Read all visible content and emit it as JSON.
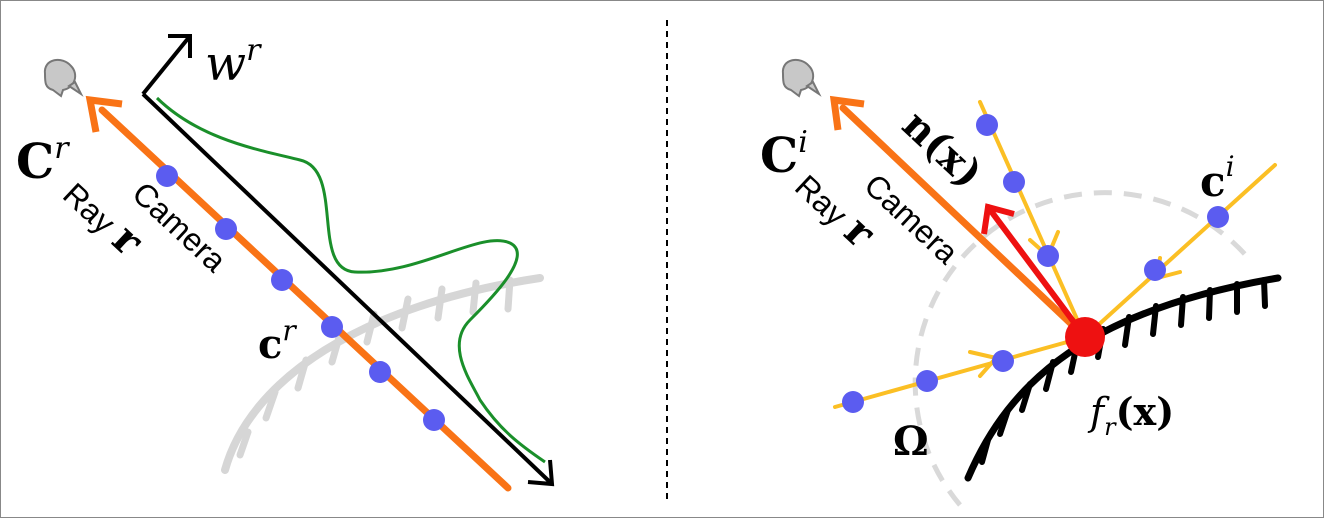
{
  "colors": {
    "camera_ray": "#f97316",
    "sample_point": "#5b5cf0",
    "weight_curve": "#1a8f2a",
    "incoming_ray": "#fbbf24",
    "normal": "#ee1111",
    "surface_hit": "#ee1111",
    "ghost_surface": "#d6d6d6",
    "hemisphere": "#d9d9d9"
  },
  "left_panel": {
    "weight_label": "w",
    "weight_sup": "r",
    "ray_color_label": "C",
    "ray_color_sup": "r",
    "ray_label_line1": "Camera",
    "ray_label_line2": "Ray",
    "ray_symbol": "r",
    "sample_color_label": "c",
    "sample_color_sup": "r",
    "camera_icon": "camera-icon"
  },
  "right_panel": {
    "ray_color_label": "C",
    "ray_color_sup": "i",
    "ray_label_line1": "Camera",
    "ray_label_line2": "Ray",
    "ray_symbol": "r",
    "normal_label": "n(x)",
    "incoming_color_label": "c",
    "incoming_color_sup": "i",
    "hemisphere_label": "Ω",
    "reflectance_f": "f",
    "reflectance_sub": "r",
    "reflectance_arg": "(x)",
    "camera_icon": "camera-icon"
  }
}
